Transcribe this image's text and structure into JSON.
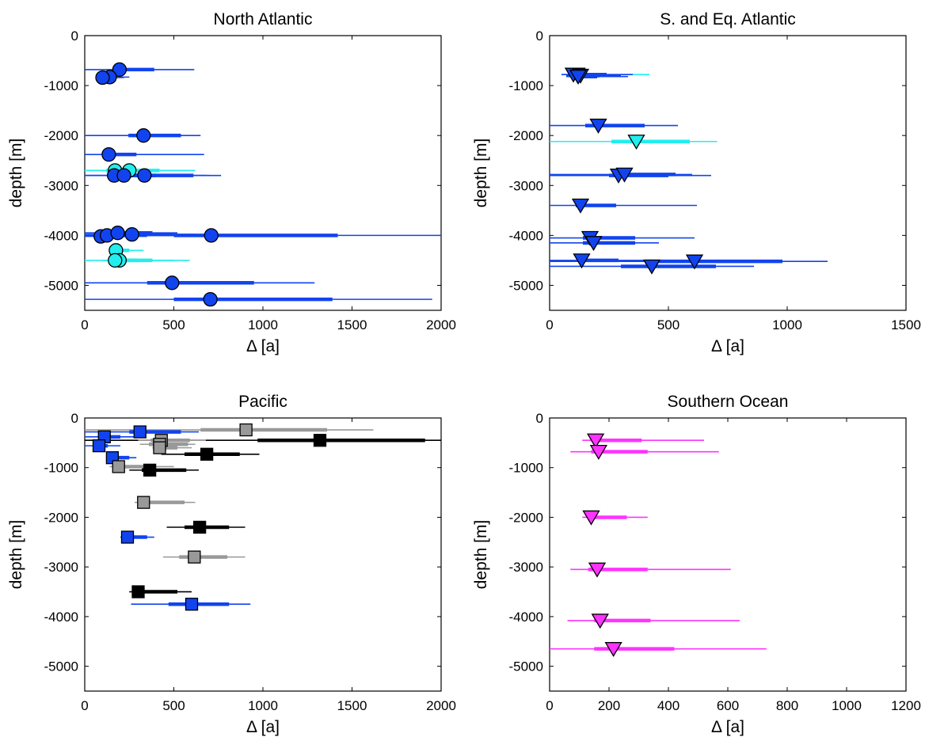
{
  "chart_data": [
    {
      "type": "scatter",
      "title": "North Atlantic",
      "xlabel": "Δ [a]",
      "ylabel": "depth [m]",
      "xlim": [
        0,
        2000
      ],
      "ylim": [
        -5500,
        0
      ],
      "xticks": [
        "0",
        "500",
        "1000",
        "1500",
        "2000"
      ],
      "yticks": [
        "0",
        "-1000",
        "-2000",
        "-3000",
        "-4000",
        "-5000"
      ],
      "grid": false,
      "points": [
        {
          "x": 195,
          "y": -680,
          "x_inner": [
            195,
            390
          ],
          "x_outer": [
            0,
            615
          ],
          "marker": "circle",
          "color": "#1144ee"
        },
        {
          "x": 140,
          "y": -830,
          "x_inner": [
            120,
            170
          ],
          "x_outer": [
            90,
            250
          ],
          "marker": "circle",
          "color": "#1144ee"
        },
        {
          "x": 100,
          "y": -840,
          "x_inner": [
            100,
            160
          ],
          "x_outer": [
            100,
            220
          ],
          "marker": "circle",
          "color": "#1144ee"
        },
        {
          "x": 330,
          "y": -2000,
          "x_inner": [
            245,
            540
          ],
          "x_outer": [
            0,
            650
          ],
          "marker": "circle",
          "color": "#1144ee"
        },
        {
          "x": 135,
          "y": -2380,
          "x_inner": [
            120,
            290
          ],
          "x_outer": [
            0,
            670
          ],
          "marker": "circle",
          "color": "#1144ee"
        },
        {
          "x": 250,
          "y": -2700,
          "x_inner": [
            200,
            420
          ],
          "x_outer": [
            0,
            620
          ],
          "marker": "circle",
          "color": "#22eeee"
        },
        {
          "x": 170,
          "y": -2700,
          "x_inner": [
            120,
            330
          ],
          "x_outer": [
            0,
            580
          ],
          "marker": "circle",
          "color": "#22eeee"
        },
        {
          "x": 165,
          "y": -2800,
          "x_inner": [
            150,
            300
          ],
          "x_outer": [
            0,
            680
          ],
          "marker": "circle",
          "color": "#1144ee"
        },
        {
          "x": 220,
          "y": -2800,
          "x_inner": [
            200,
            400
          ],
          "x_outer": [
            0,
            700
          ],
          "marker": "circle",
          "color": "#1144ee"
        },
        {
          "x": 335,
          "y": -2800,
          "x_inner": [
            280,
            610
          ],
          "x_outer": [
            0,
            765
          ],
          "marker": "circle",
          "color": "#1144ee"
        },
        {
          "x": 90,
          "y": -4020,
          "x_inner": [
            90,
            200
          ],
          "x_outer": [
            0,
            350
          ],
          "marker": "circle",
          "color": "#1144ee"
        },
        {
          "x": 125,
          "y": -4000,
          "x_inner": [
            120,
            300
          ],
          "x_outer": [
            0,
            500
          ],
          "marker": "circle",
          "color": "#1144ee"
        },
        {
          "x": 185,
          "y": -3950,
          "x_inner": [
            150,
            380
          ],
          "x_outer": [
            0,
            520
          ],
          "marker": "circle",
          "color": "#1144ee"
        },
        {
          "x": 265,
          "y": -3980,
          "x_inner": [
            240,
            500
          ],
          "x_outer": [
            0,
            620
          ],
          "marker": "circle",
          "color": "#1144ee"
        },
        {
          "x": 710,
          "y": -4000,
          "x_inner": [
            500,
            1420
          ],
          "x_outer": [
            0,
            2000
          ],
          "marker": "circle",
          "color": "#1144ee"
        },
        {
          "x": 175,
          "y": -4300,
          "x_inner": [
            160,
            250
          ],
          "x_outer": [
            140,
            330
          ],
          "marker": "circle",
          "color": "#22eeee"
        },
        {
          "x": 195,
          "y": -4500,
          "x_inner": [
            130,
            380
          ],
          "x_outer": [
            0,
            590
          ],
          "marker": "circle",
          "color": "#22eeee"
        },
        {
          "x": 170,
          "y": -4500,
          "x_inner": [
            150,
            300
          ],
          "x_outer": [
            100,
            500
          ],
          "marker": "circle",
          "color": "#22eeee"
        },
        {
          "x": 490,
          "y": -4950,
          "x_inner": [
            350,
            950
          ],
          "x_outer": [
            0,
            1290
          ],
          "marker": "circle",
          "color": "#1144ee"
        },
        {
          "x": 705,
          "y": -5280,
          "x_inner": [
            500,
            1390
          ],
          "x_outer": [
            0,
            1950
          ],
          "marker": "circle",
          "color": "#1144ee"
        }
      ]
    },
    {
      "type": "scatter",
      "title": "S. and Eq. Atlantic",
      "xlabel": "Δ [a]",
      "ylabel": "depth [m]",
      "xlim": [
        0,
        1500
      ],
      "ylim": [
        -5500,
        0
      ],
      "xticks": [
        "0",
        "500",
        "1000",
        "1500"
      ],
      "yticks": [
        "0",
        "-1000",
        "-2000",
        "-3000",
        "-4000",
        "-5000"
      ],
      "grid": false,
      "points": [
        {
          "x": 115,
          "y": -780,
          "x_inner": [
            110,
            220
          ],
          "x_outer": [
            50,
            420
          ],
          "marker": "triangle",
          "color": "#22eeee"
        },
        {
          "x": 100,
          "y": -780,
          "x_inner": [
            90,
            240
          ],
          "x_outer": [
            50,
            350
          ],
          "marker": "triangle",
          "color": "#1144ee"
        },
        {
          "x": 130,
          "y": -800,
          "x_inner": [
            110,
            210
          ],
          "x_outer": [
            70,
            300
          ],
          "marker": "triangle",
          "color": "#1144ee"
        },
        {
          "x": 120,
          "y": -820,
          "x_inner": [
            110,
            200
          ],
          "x_outer": [
            70,
            330
          ],
          "marker": "triangle",
          "color": "#1144ee"
        },
        {
          "x": 205,
          "y": -1800,
          "x_inner": [
            150,
            400
          ],
          "x_outer": [
            0,
            540
          ],
          "marker": "triangle",
          "color": "#1144ee"
        },
        {
          "x": 365,
          "y": -2120,
          "x_inner": [
            260,
            590
          ],
          "x_outer": [
            0,
            705
          ],
          "marker": "triangle",
          "color": "#22eeee"
        },
        {
          "x": 290,
          "y": -2800,
          "x_inner": [
            250,
            500
          ],
          "x_outer": [
            0,
            680
          ],
          "marker": "triangle",
          "color": "#1144ee"
        },
        {
          "x": 315,
          "y": -2780,
          "x_inner": [
            270,
            530
          ],
          "x_outer": [
            0,
            600
          ],
          "marker": "triangle",
          "color": "#1144ee"
        },
        {
          "x": 130,
          "y": -3400,
          "x_inner": [
            110,
            280
          ],
          "x_outer": [
            0,
            620
          ],
          "marker": "triangle",
          "color": "#1144ee"
        },
        {
          "x": 170,
          "y": -4050,
          "x_inner": [
            140,
            360
          ],
          "x_outer": [
            0,
            610
          ],
          "marker": "triangle",
          "color": "#1144ee"
        },
        {
          "x": 185,
          "y": -4150,
          "x_inner": [
            140,
            360
          ],
          "x_outer": [
            0,
            460
          ],
          "marker": "triangle",
          "color": "#1144ee"
        },
        {
          "x": 135,
          "y": -4500,
          "x_inner": [
            120,
            290
          ],
          "x_outer": [
            0,
            600
          ],
          "marker": "triangle",
          "color": "#1144ee"
        },
        {
          "x": 610,
          "y": -4520,
          "x_inner": [
            400,
            980
          ],
          "x_outer": [
            0,
            1170
          ],
          "marker": "triangle",
          "color": "#1144ee"
        },
        {
          "x": 430,
          "y": -4620,
          "x_inner": [
            300,
            700
          ],
          "x_outer": [
            0,
            860
          ],
          "marker": "triangle",
          "color": "#1144ee"
        }
      ]
    },
    {
      "type": "scatter",
      "title": "Pacific",
      "xlabel": "Δ [a]",
      "ylabel": "depth [m]",
      "xlim": [
        0,
        2000
      ],
      "ylim": [
        -5500,
        0
      ],
      "xticks": [
        "0",
        "500",
        "1000",
        "1500",
        "2000"
      ],
      "yticks": [
        "0",
        "-1000",
        "-2000",
        "-3000",
        "-4000",
        "-5000"
      ],
      "grid": false,
      "points": [
        {
          "x": 905,
          "y": -240,
          "x_inner": [
            650,
            1360
          ],
          "x_outer": [
            0,
            1620
          ],
          "marker": "square",
          "color": "#999999"
        },
        {
          "x": 310,
          "y": -280,
          "x_inner": [
            250,
            540
          ],
          "x_outer": [
            0,
            640
          ],
          "marker": "square",
          "color": "#1144ee"
        },
        {
          "x": 110,
          "y": -380,
          "x_inner": [
            90,
            200
          ],
          "x_outer": [
            0,
            300
          ],
          "marker": "square",
          "color": "#1144ee"
        },
        {
          "x": 1320,
          "y": -450,
          "x_inner": [
            970,
            1910
          ],
          "x_outer": [
            0,
            2000
          ],
          "marker": "square",
          "color": "#000000"
        },
        {
          "x": 430,
          "y": -450,
          "x_inner": [
            370,
            590
          ],
          "x_outer": [
            300,
            680
          ],
          "marker": "square",
          "color": "#999999"
        },
        {
          "x": 420,
          "y": -530,
          "x_inner": [
            360,
            580
          ],
          "x_outer": [
            310,
            620
          ],
          "marker": "square",
          "color": "#999999"
        },
        {
          "x": 80,
          "y": -560,
          "x_inner": [
            70,
            130
          ],
          "x_outer": [
            0,
            200
          ],
          "marker": "square",
          "color": "#1144ee"
        },
        {
          "x": 420,
          "y": -600,
          "x_inner": [
            390,
            520
          ],
          "x_outer": [
            380,
            600
          ],
          "marker": "square",
          "color": "#999999"
        },
        {
          "x": 685,
          "y": -730,
          "x_inner": [
            560,
            870
          ],
          "x_outer": [
            430,
            980
          ],
          "marker": "square",
          "color": "#000000"
        },
        {
          "x": 155,
          "y": -800,
          "x_inner": [
            140,
            250
          ],
          "x_outer": [
            120,
            290
          ],
          "marker": "square",
          "color": "#1144ee"
        },
        {
          "x": 190,
          "y": -980,
          "x_inner": [
            180,
            400
          ],
          "x_outer": [
            140,
            500
          ],
          "marker": "square",
          "color": "#999999"
        },
        {
          "x": 365,
          "y": -1050,
          "x_inner": [
            320,
            570
          ],
          "x_outer": [
            250,
            640
          ],
          "marker": "square",
          "color": "#000000"
        },
        {
          "x": 330,
          "y": -1700,
          "x_inner": [
            300,
            560
          ],
          "x_outer": [
            280,
            620
          ],
          "marker": "square",
          "color": "#999999"
        },
        {
          "x": 645,
          "y": -2200,
          "x_inner": [
            560,
            810
          ],
          "x_outer": [
            460,
            900
          ],
          "marker": "square",
          "color": "#000000"
        },
        {
          "x": 240,
          "y": -2400,
          "x_inner": [
            230,
            350
          ],
          "x_outer": [
            200,
            390
          ],
          "marker": "square",
          "color": "#1144ee"
        },
        {
          "x": 615,
          "y": -2800,
          "x_inner": [
            530,
            800
          ],
          "x_outer": [
            440,
            900
          ],
          "marker": "square",
          "color": "#999999"
        },
        {
          "x": 300,
          "y": -3500,
          "x_inner": [
            270,
            520
          ],
          "x_outer": [
            250,
            600
          ],
          "marker": "square",
          "color": "#000000"
        },
        {
          "x": 600,
          "y": -3750,
          "x_inner": [
            470,
            810
          ],
          "x_outer": [
            260,
            930
          ],
          "marker": "square",
          "color": "#1144ee"
        }
      ]
    },
    {
      "type": "scatter",
      "title": "Southern Ocean",
      "xlabel": "Δ [a]",
      "ylabel": "depth [m]",
      "xlim": [
        0,
        1200
      ],
      "ylim": [
        -5500,
        0
      ],
      "xticks": [
        "0",
        "200",
        "400",
        "600",
        "800",
        "1000",
        "1200"
      ],
      "yticks": [
        "0",
        "-1000",
        "-2000",
        "-3000",
        "-4000",
        "-5000"
      ],
      "grid": false,
      "points": [
        {
          "x": 155,
          "y": -450,
          "x_inner": [
            140,
            310
          ],
          "x_outer": [
            110,
            520
          ],
          "marker": "triangle",
          "color": "#ff33ff"
        },
        {
          "x": 165,
          "y": -680,
          "x_inner": [
            140,
            330
          ],
          "x_outer": [
            70,
            570
          ],
          "marker": "triangle",
          "color": "#ff33ff"
        },
        {
          "x": 140,
          "y": -2000,
          "x_inner": [
            130,
            260
          ],
          "x_outer": [
            110,
            330
          ],
          "marker": "triangle",
          "color": "#ff33ff"
        },
        {
          "x": 160,
          "y": -3050,
          "x_inner": [
            130,
            330
          ],
          "x_outer": [
            70,
            610
          ],
          "marker": "triangle",
          "color": "#ff33ff"
        },
        {
          "x": 170,
          "y": -4080,
          "x_inner": [
            150,
            340
          ],
          "x_outer": [
            60,
            640
          ],
          "marker": "triangle",
          "color": "#ff33ff"
        },
        {
          "x": 215,
          "y": -4650,
          "x_inner": [
            150,
            420
          ],
          "x_outer": [
            0,
            730
          ],
          "marker": "triangle",
          "color": "#ff33ff"
        }
      ]
    }
  ]
}
